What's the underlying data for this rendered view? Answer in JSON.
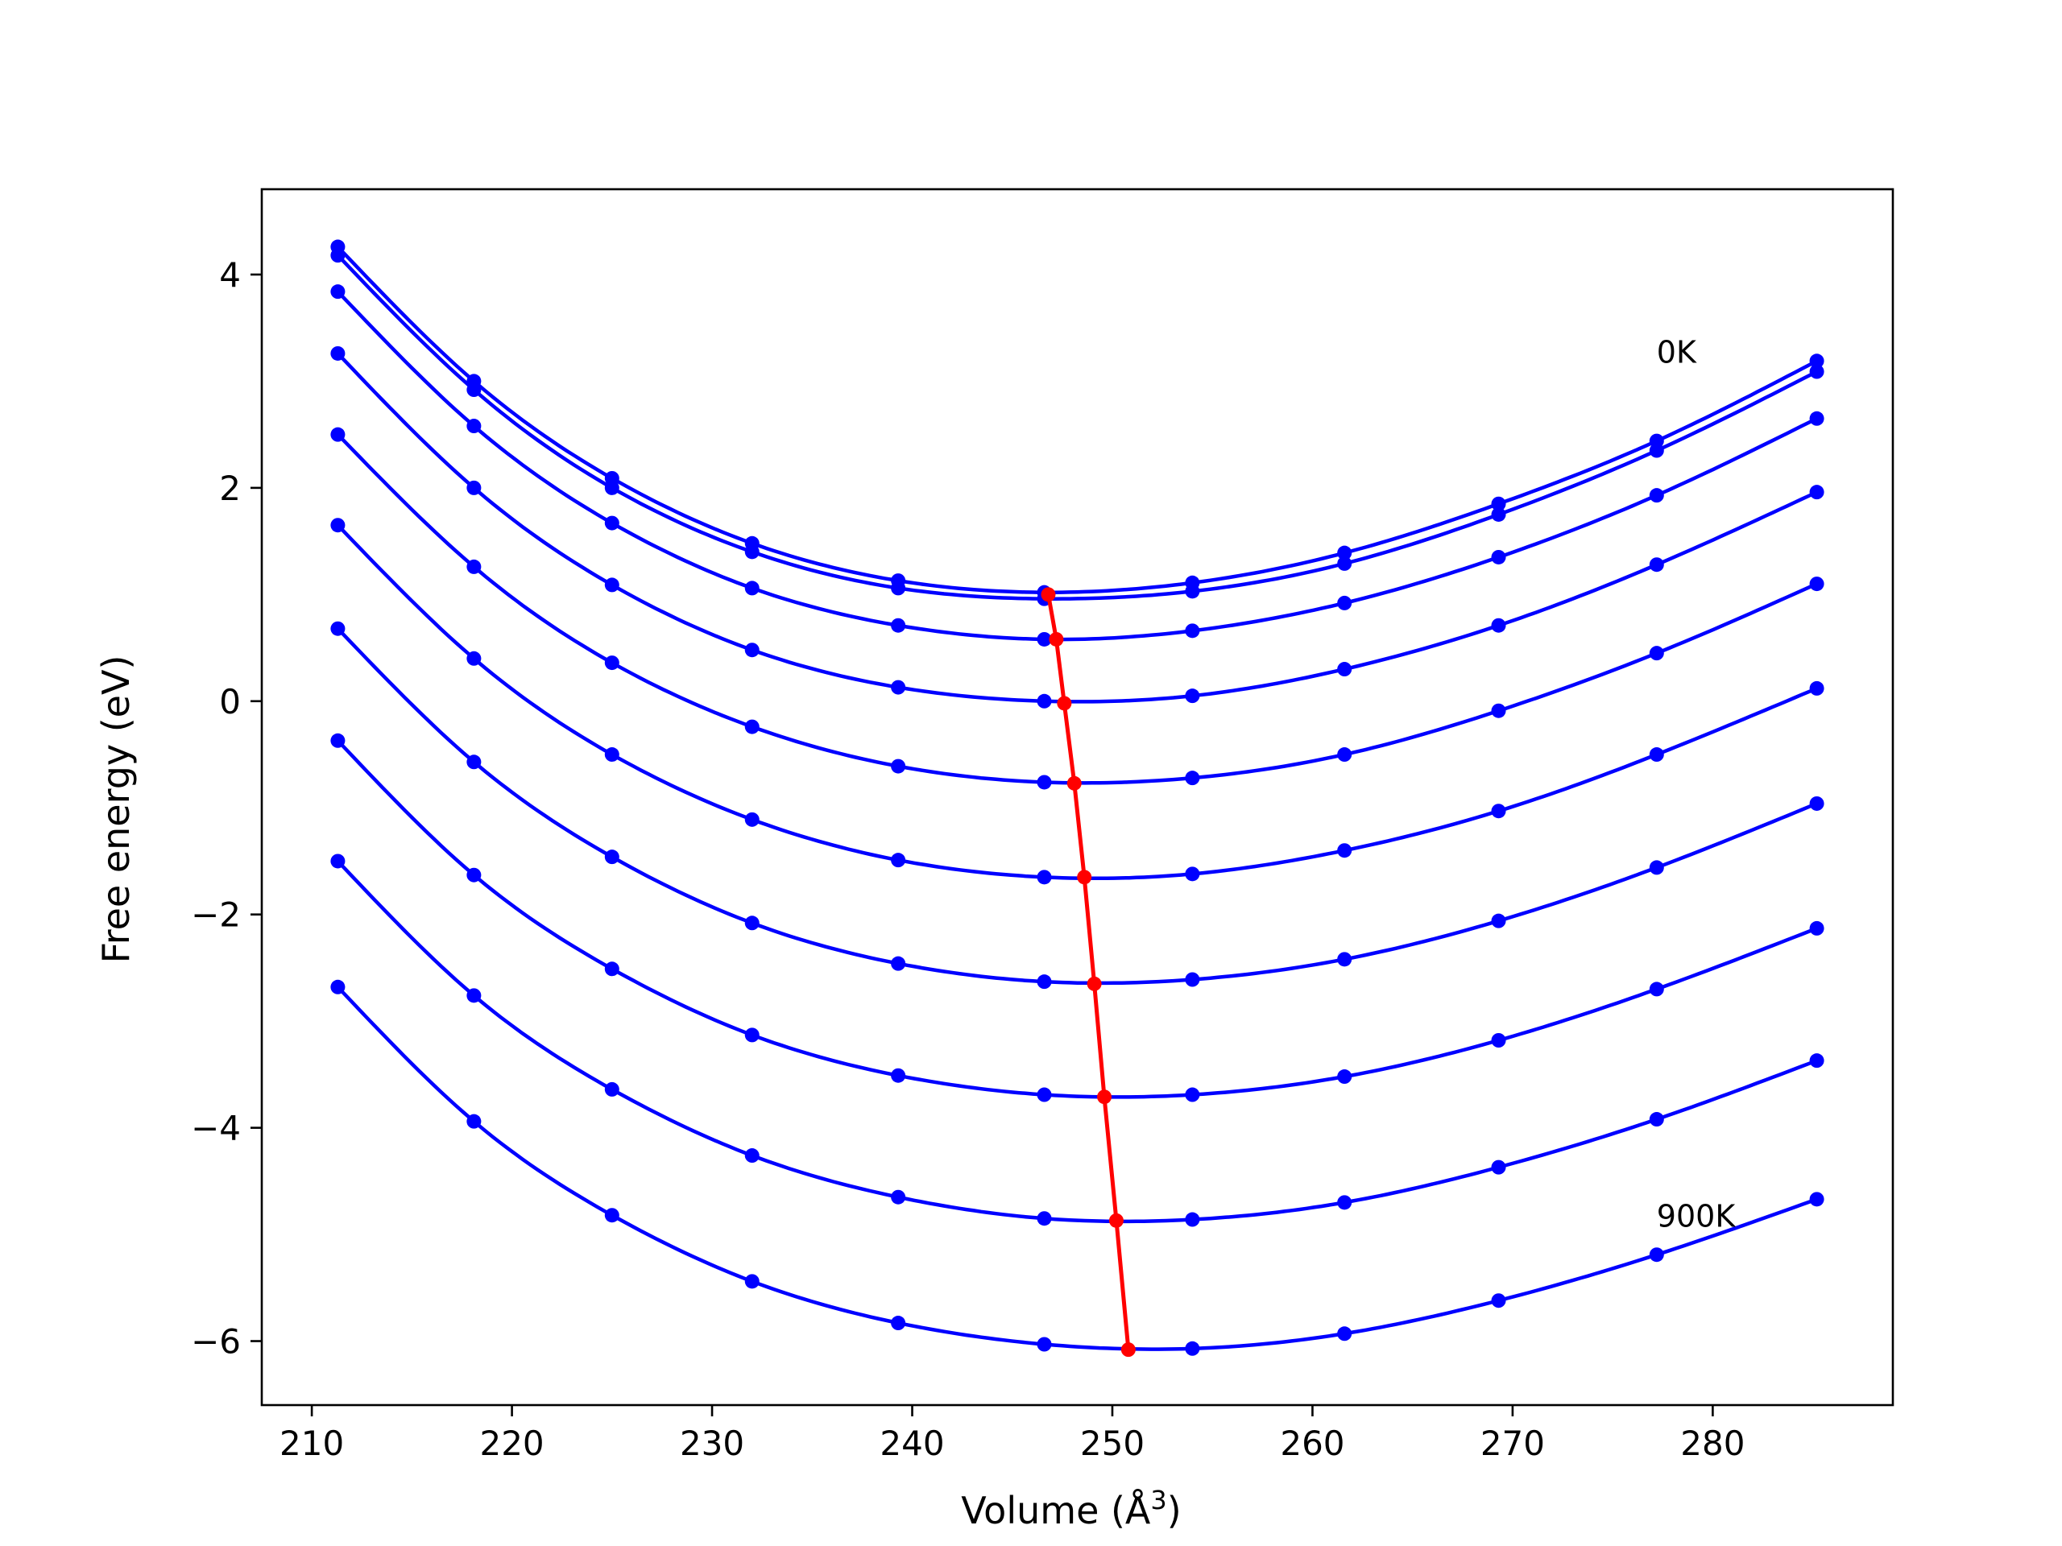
{
  "chart_data": {
    "type": "line",
    "xlabel": "Volume (Å",
    "xlabel_sup": "3",
    "xlabel_close": ")",
    "ylabel": "Free energy (eV)",
    "xlim": [
      207.5,
      289
    ],
    "ylim": [
      -6.6,
      4.8
    ],
    "x_ticks": [
      210,
      220,
      230,
      240,
      250,
      260,
      270,
      280
    ],
    "x_tick_labels": [
      "210",
      "220",
      "230",
      "240",
      "250",
      "260",
      "270",
      "280"
    ],
    "y_ticks": [
      4,
      2,
      0,
      -2,
      -4,
      -6
    ],
    "y_tick_labels": [
      "4",
      "2",
      "0",
      "−2",
      "−4",
      "−6"
    ],
    "grid": false,
    "x": [
      211.3,
      218.1,
      225.0,
      232.0,
      239.3,
      246.6,
      254.0,
      261.6,
      269.3,
      277.2,
      285.2
    ],
    "series": [
      {
        "color": "#0000ff",
        "values": [
          4.26,
          3.0,
          2.09,
          1.48,
          1.13,
          1.02,
          1.11,
          1.39,
          1.85,
          2.44,
          3.19
        ]
      },
      {
        "color": "#0000ff",
        "values": [
          4.18,
          2.92,
          2.0,
          1.4,
          1.06,
          0.96,
          1.03,
          1.29,
          1.75,
          2.35,
          3.09
        ]
      },
      {
        "color": "#0000ff",
        "values": [
          3.84,
          2.58,
          1.67,
          1.06,
          0.71,
          0.58,
          0.66,
          0.92,
          1.35,
          1.93,
          2.65
        ]
      },
      {
        "color": "#0000ff",
        "values": [
          3.26,
          2.0,
          1.09,
          0.48,
          0.13,
          0.0,
          0.05,
          0.3,
          0.71,
          1.28,
          1.96
        ]
      },
      {
        "color": "#0000ff",
        "values": [
          2.5,
          1.26,
          0.36,
          -0.24,
          -0.61,
          -0.76,
          -0.72,
          -0.5,
          -0.09,
          0.45,
          1.1
        ]
      },
      {
        "color": "#0000ff",
        "values": [
          1.65,
          0.4,
          -0.5,
          -1.11,
          -1.49,
          -1.65,
          -1.62,
          -1.4,
          -1.03,
          -0.5,
          0.12
        ]
      },
      {
        "color": "#0000ff",
        "values": [
          0.68,
          -0.57,
          -1.46,
          -2.08,
          -2.46,
          -2.63,
          -2.61,
          -2.42,
          -2.06,
          -1.56,
          -0.96
        ]
      },
      {
        "color": "#0000ff",
        "values": [
          -0.37,
          -1.63,
          -2.51,
          -3.13,
          -3.51,
          -3.69,
          -3.69,
          -3.52,
          -3.18,
          -2.7,
          -2.13
        ]
      },
      {
        "color": "#0000ff",
        "values": [
          -1.5,
          -2.76,
          -3.64,
          -4.26,
          -4.65,
          -4.85,
          -4.86,
          -4.7,
          -4.37,
          -3.92,
          -3.37
        ]
      },
      {
        "color": "#0000ff",
        "values": [
          -2.68,
          -3.94,
          -4.82,
          -5.44,
          -5.83,
          -6.03,
          -6.07,
          -5.93,
          -5.62,
          -5.19,
          -4.67
        ]
      }
    ],
    "minima": {
      "color": "#ff0000",
      "x": [
        246.8,
        247.2,
        247.6,
        248.1,
        248.6,
        249.1,
        249.6,
        250.2,
        250.8
      ],
      "y": [
        1.0,
        0.58,
        -0.02,
        -0.77,
        -1.65,
        -2.65,
        -3.71,
        -4.87,
        -6.08
      ]
    },
    "annotations": [
      {
        "text": "0K",
        "x": 277.2,
        "y": 3.27
      },
      {
        "text": "900K",
        "x": 277.2,
        "y": -4.83
      }
    ]
  }
}
